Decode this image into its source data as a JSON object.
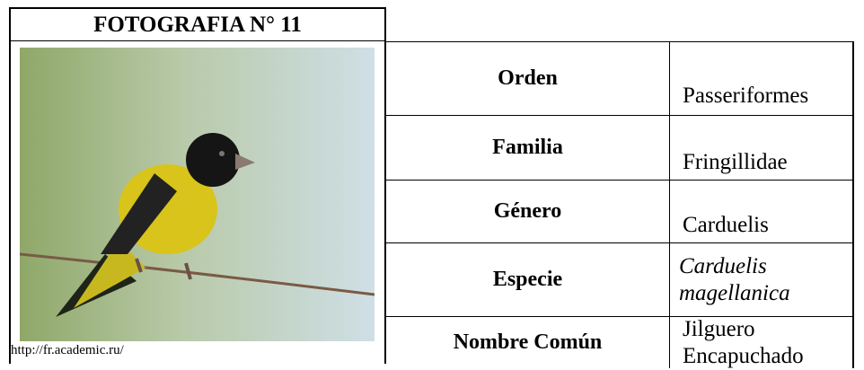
{
  "header": {
    "title": "FOTOGRAFIA N° 11"
  },
  "source": "http://fr.academic.ru/",
  "table": {
    "rows": [
      [
        "Orden",
        "Passeriformes"
      ],
      [
        "Familia",
        "Fringillidae"
      ],
      [
        "Género",
        "Carduelis"
      ],
      [
        "Especie",
        "Carduelis magellanica"
      ],
      [
        "Nombre Común",
        "Jilguero Encapuchado"
      ]
    ]
  }
}
